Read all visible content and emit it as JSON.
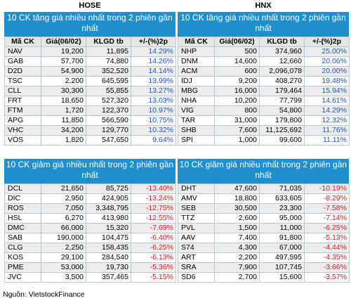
{
  "hose": {
    "label": "HOSE",
    "gainers_title": "10 CK tăng giá nhiều nhất trong 2 phiên gần nhất",
    "losers_title": "10 CK giảm giá nhiều nhất trong 2 phiên gần nhất",
    "columns": [
      "Mã CK",
      "Giá(06/02)",
      "KLGD tb",
      "+/-(%)2p"
    ],
    "gainers": [
      {
        "sym": "NAV",
        "price": "19,200",
        "vol": "11,895",
        "chg": "14.29%"
      },
      {
        "sym": "GAB",
        "price": "57,700",
        "vol": "74,880",
        "chg": "14.26%"
      },
      {
        "sym": "D2D",
        "price": "54,900",
        "vol": "352,520",
        "chg": "14.14%"
      },
      {
        "sym": "TSC",
        "price": "2,200",
        "vol": "645,595",
        "chg": "13.99%"
      },
      {
        "sym": "CLL",
        "price": "30,300",
        "vol": "55,855",
        "chg": "13.27%"
      },
      {
        "sym": "FRT",
        "price": "18,650",
        "vol": "527,320",
        "chg": "13.03%"
      },
      {
        "sym": "FTM",
        "price": "1,720",
        "vol": "122,370",
        "chg": "10.97%"
      },
      {
        "sym": "APG",
        "price": "11,850",
        "vol": "566,590",
        "chg": "10.75%"
      },
      {
        "sym": "VHC",
        "price": "34,200",
        "vol": "129,770",
        "chg": "10.32%"
      },
      {
        "sym": "VOS",
        "price": "1,820",
        "vol": "547,650",
        "chg": "9.64%"
      }
    ],
    "losers": [
      {
        "sym": "DCL",
        "price": "21,650",
        "vol": "85,725",
        "chg": "-13.40%"
      },
      {
        "sym": "DIC",
        "price": "2,950",
        "vol": "424,905",
        "chg": "-13.24%"
      },
      {
        "sym": "ROS",
        "price": "7,050",
        "vol": "3,348,795",
        "chg": "-12.75%"
      },
      {
        "sym": "HSL",
        "price": "6,270",
        "vol": "413,980",
        "chg": "-12.55%"
      },
      {
        "sym": "DMC",
        "price": "66,000",
        "vol": "15,320",
        "chg": "-7.69%"
      },
      {
        "sym": "SAB",
        "price": "190,000",
        "vol": "104,475",
        "chg": "-6.40%"
      },
      {
        "sym": "CLG",
        "price": "2,250",
        "vol": "158,435",
        "chg": "-6.25%"
      },
      {
        "sym": "KOS",
        "price": "29,100",
        "vol": "284,540",
        "chg": "-6.13%"
      },
      {
        "sym": "PME",
        "price": "53,000",
        "vol": "19,730",
        "chg": "-5.36%"
      },
      {
        "sym": "JVC",
        "price": "3,500",
        "vol": "357,465",
        "chg": "-5.15%"
      }
    ]
  },
  "hnx": {
    "label": "HNX",
    "gainers_title": "10 CK tăng giá nhiều nhất trong 2 phiên gần nhất",
    "losers_title": "10 CK giảm giá nhiều nhất trong 2 phiên gần nhất",
    "columns": [
      "Mã CK",
      "Giá(06/02)",
      "KLGD tb",
      "+/-(%)2p"
    ],
    "gainers": [
      {
        "sym": "NHP",
        "price": "500",
        "vol": "374,960",
        "chg": "25.00%"
      },
      {
        "sym": "DNM",
        "price": "14,600",
        "vol": "12,660",
        "chg": "20.06%"
      },
      {
        "sym": "ACM",
        "price": "600",
        "vol": "2,096,078",
        "chg": "20.00%"
      },
      {
        "sym": "IDJ",
        "price": "9,200",
        "vol": "408,270",
        "chg": "19.48%"
      },
      {
        "sym": "MBG",
        "price": "16,000",
        "vol": "179,464",
        "chg": "15.94%"
      },
      {
        "sym": "NHA",
        "price": "10,200",
        "vol": "77,799",
        "chg": "14.61%"
      },
      {
        "sym": "VIG",
        "price": "800",
        "vol": "54,800",
        "chg": "14.29%"
      },
      {
        "sym": "TAR",
        "price": "31,000",
        "vol": "179,800",
        "chg": "12.32%"
      },
      {
        "sym": "SHB",
        "price": "7,600",
        "vol": "11,125,692",
        "chg": "11.76%"
      },
      {
        "sym": "SPI",
        "price": "1,000",
        "vol": "99,600",
        "chg": "11.11%"
      }
    ],
    "losers": [
      {
        "sym": "DHT",
        "price": "47,600",
        "vol": "71,035",
        "chg": "-10.19%"
      },
      {
        "sym": "AMV",
        "price": "18,800",
        "vol": "633,605",
        "chg": "-8.29%"
      },
      {
        "sym": "SEB",
        "price": "30,500",
        "vol": "23,300",
        "chg": "-7.58%"
      },
      {
        "sym": "TTZ",
        "price": "2,600",
        "vol": "95,000",
        "chg": "-7.14%"
      },
      {
        "sym": "PVL",
        "price": "1,500",
        "vol": "11,000",
        "chg": "-6.25%"
      },
      {
        "sym": "AAV",
        "price": "7,400",
        "vol": "91,800",
        "chg": "-5.13%"
      },
      {
        "sym": "S74",
        "price": "4,300",
        "vol": "67,000",
        "chg": "-4.44%"
      },
      {
        "sym": "ART",
        "price": "2,200",
        "vol": "497,595",
        "chg": "-4.35%"
      },
      {
        "sym": "SRA",
        "price": "7,900",
        "vol": "107,745",
        "chg": "-3.66%"
      },
      {
        "sym": "SD6",
        "price": "2,700",
        "vol": "15,600",
        "chg": "-3.57%"
      }
    ]
  },
  "source": "Nguồn: VietstockFinance",
  "colors": {
    "banner": "#1f8fce",
    "gain": "#1c57c8",
    "loss": "#d21d1d",
    "border": "#b9c6d6",
    "header_bg": "#e5e5e5",
    "stripe_bg": "#ececec"
  }
}
